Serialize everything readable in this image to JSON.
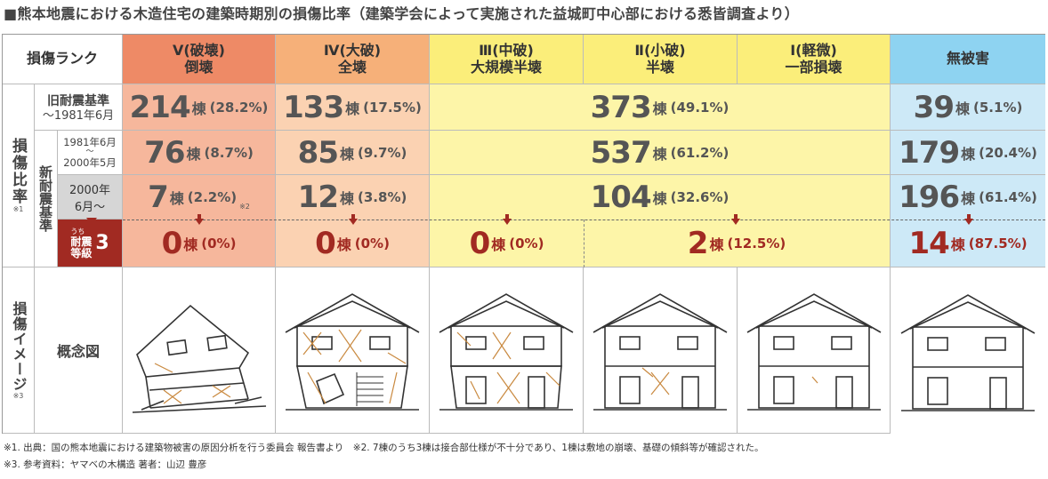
{
  "title": "■熊本地震における木造住宅の建築時期別の損傷比率（建築学会によって実施された益城町中心部における悉皆調査より）",
  "header": {
    "rank_label": "損傷ランク",
    "col1_l1": "Ⅴ(破壊)",
    "col1_l2": "倒壊",
    "col2_l1": "Ⅳ(大破)",
    "col2_l2": "全壊",
    "col3_l1": "Ⅲ(中破)",
    "col3_l2": "大規模半壊",
    "col4_l1": "Ⅱ(小破)",
    "col4_l2": "半壊",
    "col5_l1": "Ⅰ(軽微)",
    "col5_l2": "一部損壊",
    "col6": "無被害"
  },
  "side": {
    "ratio_label": "損傷比率",
    "ratio_note": "※1",
    "old_l1": "旧耐震基準",
    "old_l2": "～1981年6月",
    "new_label": "新耐震基準",
    "p1_l1": "1981年6月",
    "p1_l2": "～",
    "p1_l3": "2000年5月",
    "p2_l1": "2000年",
    "p2_l2": "6月～",
    "grade_small": "うち",
    "grade_l1": "耐震",
    "grade_l2": "等級",
    "grade_num": "3",
    "image_label": "損傷イメージ",
    "image_note": "※3",
    "concept": "概念図"
  },
  "unit": "棟",
  "rows": {
    "old": {
      "c1": {
        "n": "214",
        "p": "(28.2%)"
      },
      "c2": {
        "n": "133",
        "p": "(17.5%)"
      },
      "c345": {
        "n": "373",
        "p": "(49.1%)"
      },
      "c6": {
        "n": "39",
        "p": "(5.1%)"
      }
    },
    "p1": {
      "c1": {
        "n": "76",
        "p": "(8.7%)"
      },
      "c2": {
        "n": "85",
        "p": "(9.7%)"
      },
      "c345": {
        "n": "537",
        "p": "(61.2%)"
      },
      "c6": {
        "n": "179",
        "p": "(20.4%)"
      }
    },
    "p2": {
      "c1": {
        "n": "7",
        "p": "(2.2%)",
        "note": "※2"
      },
      "c2": {
        "n": "12",
        "p": "(3.8%)"
      },
      "c345": {
        "n": "104",
        "p": "(32.6%)"
      },
      "c6": {
        "n": "196",
        "p": "(61.4%)"
      }
    },
    "g3": {
      "c1": {
        "n": "0",
        "p": "(0%)"
      },
      "c2": {
        "n": "0",
        "p": "(0%)"
      },
      "c3": {
        "n": "0",
        "p": "(0%)"
      },
      "c45": {
        "n": "2",
        "p": "(12.5%)"
      },
      "c6": {
        "n": "14",
        "p": "(87.5%)"
      }
    }
  },
  "colors": {
    "col1": "#f6b79c",
    "col1_hdr": "#ee8a66",
    "col2": "#fbd2b2",
    "col2_hdr": "#f6b079",
    "col345": "#fdf5a8",
    "col345_hdr": "#fbee7a",
    "col6": "#cde9f7",
    "col6_hdr": "#8ed3f1",
    "grade": "#a12a22",
    "side_gray": "#d6d6d6"
  },
  "footnotes": {
    "f1": "※1. 出典：国の熊本地震における建築物被害の原因分析を行う委員会 報告書より　※2. 7棟のうち3棟は接合部仕様が不十分であり、1棟は敷地の崩壊、基礎の傾斜等が確認された。",
    "f3": "※3. 参考資料：ヤマベの木構造 著者：山辺 豊彦"
  }
}
